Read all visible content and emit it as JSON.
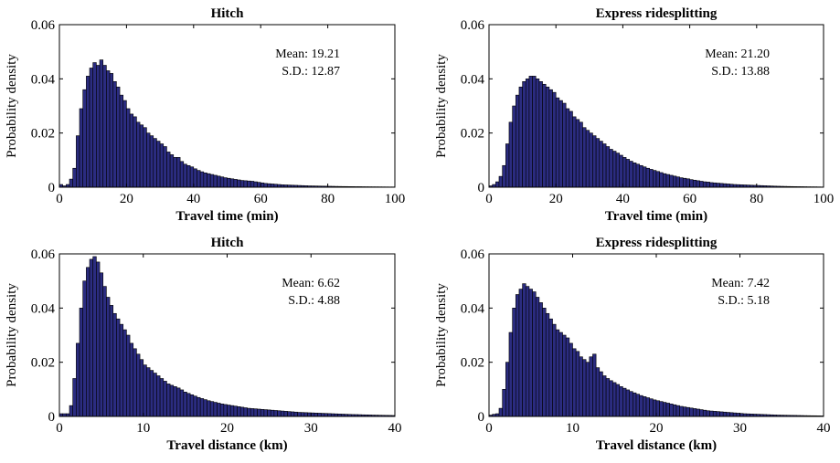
{
  "colors": {
    "bar_fill": "#2b2c80",
    "bar_edge": "#000000",
    "background": "#ffffff"
  },
  "chart_data": [
    {
      "type": "bar",
      "title": "Hitch",
      "xlabel": "Travel time (min)",
      "ylabel": "Probability density",
      "xlim": [
        0,
        100
      ],
      "ylim": [
        0,
        0.06
      ],
      "xticks": [
        0,
        20,
        40,
        60,
        80,
        100
      ],
      "yticks": [
        0,
        0.02,
        0.04,
        0.06
      ],
      "xtick_labels": [
        "0",
        "20",
        "40",
        "60",
        "80",
        "100"
      ],
      "ytick_labels": [
        "0",
        "0.02",
        "0.04",
        "0.06"
      ],
      "annotations": [
        "Mean: 19.21",
        "S.D.: 12.87"
      ],
      "bin_width": 1,
      "bin_start": 0,
      "values": [
        0.001,
        0.0005,
        0.001,
        0.003,
        0.007,
        0.019,
        0.029,
        0.036,
        0.041,
        0.044,
        0.046,
        0.045,
        0.047,
        0.045,
        0.043,
        0.042,
        0.039,
        0.037,
        0.034,
        0.032,
        0.029,
        0.027,
        0.026,
        0.024,
        0.023,
        0.022,
        0.02,
        0.019,
        0.018,
        0.017,
        0.016,
        0.015,
        0.013,
        0.012,
        0.011,
        0.011,
        0.0095,
        0.0085,
        0.008,
        0.0075,
        0.0068,
        0.0062,
        0.0057,
        0.0053,
        0.005,
        0.0047,
        0.0044,
        0.0041,
        0.0038,
        0.0035,
        0.0033,
        0.0031,
        0.0029,
        0.0027,
        0.0025,
        0.0024,
        0.0023,
        0.0022,
        0.002,
        0.0018,
        0.0016,
        0.0014,
        0.0013,
        0.0012,
        0.0011,
        0.001,
        0.0009,
        0.00085,
        0.0008,
        0.00075,
        0.0007,
        0.00065,
        0.0006,
        0.00055,
        0.0005,
        0.00048,
        0.00045,
        0.00042,
        0.0004,
        0.00038,
        0.00035,
        0.00033,
        0.0003,
        0.00028,
        0.00026,
        0.00025,
        0.00023,
        0.00022,
        0.0002,
        0.0002,
        0.00018,
        0.00017,
        0.00016,
        0.00015,
        0.00014,
        0.00013,
        0.00012,
        0.00011,
        0.0001,
        0.0001
      ]
    },
    {
      "type": "bar",
      "title": "Express ridesplitting",
      "xlabel": "Travel time (min)",
      "ylabel": "Probability density",
      "xlim": [
        0,
        100
      ],
      "ylim": [
        0,
        0.06
      ],
      "xticks": [
        0,
        20,
        40,
        60,
        80,
        100
      ],
      "yticks": [
        0,
        0.02,
        0.04,
        0.06
      ],
      "xtick_labels": [
        "0",
        "20",
        "40",
        "60",
        "80",
        "100"
      ],
      "ytick_labels": [
        "0",
        "0.02",
        "0.04",
        "0.06"
      ],
      "annotations": [
        "Mean: 21.20",
        "S.D.: 13.88"
      ],
      "bin_width": 1,
      "bin_start": 0,
      "values": [
        0.0005,
        0.001,
        0.002,
        0.004,
        0.008,
        0.016,
        0.024,
        0.03,
        0.034,
        0.037,
        0.039,
        0.04,
        0.041,
        0.041,
        0.04,
        0.039,
        0.038,
        0.037,
        0.036,
        0.035,
        0.033,
        0.032,
        0.031,
        0.029,
        0.028,
        0.026,
        0.025,
        0.024,
        0.022,
        0.021,
        0.02,
        0.019,
        0.018,
        0.017,
        0.016,
        0.015,
        0.014,
        0.0133,
        0.0126,
        0.0118,
        0.011,
        0.0103,
        0.0096,
        0.009,
        0.0085,
        0.008,
        0.0075,
        0.007,
        0.0066,
        0.0062,
        0.0058,
        0.0054,
        0.005,
        0.0047,
        0.0044,
        0.0041,
        0.0038,
        0.0035,
        0.0033,
        0.0031,
        0.0028,
        0.0026,
        0.0024,
        0.0022,
        0.002,
        0.0019,
        0.0017,
        0.0016,
        0.0015,
        0.0014,
        0.0013,
        0.0012,
        0.0011,
        0.001,
        0.00095,
        0.0009,
        0.00085,
        0.0008,
        0.00075,
        0.0007,
        0.00065,
        0.0006,
        0.00055,
        0.0005,
        0.00045,
        0.0004,
        0.00036,
        0.00033,
        0.0003,
        0.00027,
        0.00025,
        0.00023,
        0.00021,
        0.0002,
        0.00018,
        0.00016,
        0.00015,
        0.00014,
        0.00012,
        0.0001
      ]
    },
    {
      "type": "bar",
      "title": "Hitch",
      "xlabel": "Travel distance (km)",
      "ylabel": "Probability density",
      "xlim": [
        0,
        40
      ],
      "ylim": [
        0,
        0.06
      ],
      "xticks": [
        0,
        10,
        20,
        30,
        40
      ],
      "yticks": [
        0,
        0.02,
        0.04,
        0.06
      ],
      "xtick_labels": [
        "0",
        "10",
        "20",
        "30",
        "40"
      ],
      "ytick_labels": [
        "0",
        "0.02",
        "0.04",
        "0.06"
      ],
      "annotations": [
        "Mean: 6.62",
        "S.D.: 4.88"
      ],
      "bin_width": 0.4,
      "bin_start": 0,
      "values": [
        0.001,
        0.001,
        0.001,
        0.004,
        0.014,
        0.027,
        0.04,
        0.05,
        0.055,
        0.058,
        0.059,
        0.057,
        0.053,
        0.048,
        0.044,
        0.041,
        0.038,
        0.036,
        0.034,
        0.032,
        0.03,
        0.027,
        0.025,
        0.023,
        0.021,
        0.019,
        0.018,
        0.017,
        0.016,
        0.015,
        0.014,
        0.013,
        0.012,
        0.0115,
        0.011,
        0.0105,
        0.0098,
        0.009,
        0.0085,
        0.008,
        0.0075,
        0.007,
        0.0066,
        0.0062,
        0.0058,
        0.0055,
        0.0052,
        0.0049,
        0.0046,
        0.0044,
        0.0042,
        0.004,
        0.0038,
        0.0036,
        0.0034,
        0.0032,
        0.003,
        0.0029,
        0.0028,
        0.0027,
        0.0026,
        0.0025,
        0.0024,
        0.0023,
        0.0022,
        0.0021,
        0.002,
        0.0019,
        0.0018,
        0.0017,
        0.0016,
        0.0015,
        0.00145,
        0.0014,
        0.00135,
        0.0013,
        0.00125,
        0.0012,
        0.00115,
        0.0011,
        0.00105,
        0.001,
        0.00095,
        0.0009,
        0.00085,
        0.0008,
        0.00075,
        0.0007,
        0.00068,
        0.00065,
        0.0006,
        0.00058,
        0.00055,
        0.0005,
        0.00048,
        0.00045,
        0.00042,
        0.0004,
        0.00038,
        0.00035
      ]
    },
    {
      "type": "bar",
      "title": "Express ridesplitting",
      "xlabel": "Travel distance (km)",
      "ylabel": "Probability density",
      "xlim": [
        0,
        40
      ],
      "ylim": [
        0,
        0.06
      ],
      "xticks": [
        0,
        10,
        20,
        30,
        40
      ],
      "yticks": [
        0,
        0.02,
        0.04,
        0.06
      ],
      "xtick_labels": [
        "0",
        "10",
        "20",
        "30",
        "40"
      ],
      "ytick_labels": [
        "0",
        "0.02",
        "0.04",
        "0.06"
      ],
      "annotations": [
        "Mean: 7.42",
        "S.D.: 5.18"
      ],
      "bin_width": 0.4,
      "bin_start": 0,
      "values": [
        0.0005,
        0.0008,
        0.001,
        0.003,
        0.01,
        0.02,
        0.031,
        0.04,
        0.045,
        0.047,
        0.049,
        0.048,
        0.047,
        0.046,
        0.044,
        0.042,
        0.04,
        0.038,
        0.036,
        0.034,
        0.032,
        0.031,
        0.03,
        0.029,
        0.027,
        0.025,
        0.024,
        0.022,
        0.021,
        0.02,
        0.022,
        0.023,
        0.018,
        0.0165,
        0.015,
        0.014,
        0.0132,
        0.0125,
        0.0118,
        0.011,
        0.0104,
        0.0098,
        0.0092,
        0.0087,
        0.0082,
        0.0077,
        0.0073,
        0.0069,
        0.0065,
        0.0061,
        0.0058,
        0.0055,
        0.0052,
        0.0049,
        0.0046,
        0.0043,
        0.004,
        0.0037,
        0.0035,
        0.0033,
        0.0031,
        0.0029,
        0.0027,
        0.0025,
        0.0023,
        0.0021,
        0.002,
        0.0019,
        0.0018,
        0.0017,
        0.0016,
        0.0015,
        0.0014,
        0.0013,
        0.0012,
        0.0011,
        0.001,
        0.00095,
        0.0009,
        0.00085,
        0.0008,
        0.00075,
        0.0007,
        0.00065,
        0.0006,
        0.00055,
        0.0005,
        0.00048,
        0.00045,
        0.00042,
        0.0004,
        0.00038,
        0.00035,
        0.00033,
        0.0003,
        0.00028,
        0.00026,
        0.00025,
        0.00023,
        0.0002
      ]
    }
  ]
}
